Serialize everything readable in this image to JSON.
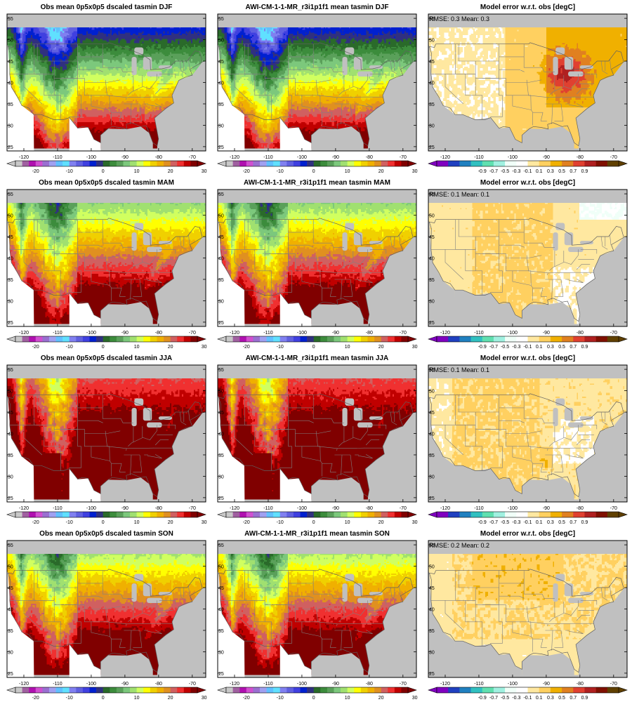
{
  "colors": {
    "absolute": [
      "#c8c8c8",
      "#a060a0",
      "#b010b0",
      "#d050d0",
      "#9a6fd0",
      "#a0a0f0",
      "#60c0ff",
      "#60e0ff",
      "#8080f0",
      "#6060e0",
      "#4040e0",
      "#0020d0",
      "#303080",
      "#2a6a2a",
      "#3c8c3c",
      "#5aa05a",
      "#7cc87c",
      "#a0e070",
      "#d0ff60",
      "#ffff00",
      "#f0d000",
      "#f0b000",
      "#e09020",
      "#d06060",
      "#f03030",
      "#c00000",
      "#800000"
    ],
    "difference": [
      "#8000c0",
      "#2040c0",
      "#2080c0",
      "#30c0c0",
      "#60e0b0",
      "#a0f0e0",
      "#f0fff8",
      "#ffffff",
      "#ffe8a0",
      "#ffd060",
      "#f0b000",
      "#e08020",
      "#e04030",
      "#b02020",
      "#801000",
      "#604000"
    ],
    "missing": "#c0c0c0",
    "state_lines": "#808080"
  },
  "axes": {
    "lat_ticks": [
      "25",
      "30",
      "35",
      "40",
      "45",
      "50",
      "55"
    ],
    "lon_ticks": [
      "-120",
      "-110",
      "-100",
      "-90",
      "-80",
      "-70"
    ]
  },
  "colorbars": {
    "absolute_labels": [
      "-20",
      "-10",
      "0",
      "10",
      "20",
      "30"
    ],
    "difference_labels": [
      "-0.9",
      "-0.7",
      "-0.5",
      "-0.3",
      "-0.1",
      "0.1",
      "0.3",
      "0.5",
      "0.7",
      "0.9"
    ]
  },
  "rows": [
    {
      "season": "DJF",
      "panels": [
        {
          "title": "Obs mean 0p5x0p5 dscaled tasmin DJF",
          "kind": "absolute",
          "stats": ""
        },
        {
          "title": "AWI-CM-1-1-MR_r3i1p1f1 mean tasmin DJF",
          "kind": "absolute",
          "stats": ""
        },
        {
          "title": "Model error w.r.t. obs [degC]",
          "kind": "difference",
          "stats": "RMSE: 0.3  Mean: 0.3"
        }
      ]
    },
    {
      "season": "MAM",
      "panels": [
        {
          "title": "Obs mean 0p5x0p5 dscaled tasmin MAM",
          "kind": "absolute",
          "stats": ""
        },
        {
          "title": "AWI-CM-1-1-MR_r3i1p1f1 mean tasmin MAM",
          "kind": "absolute",
          "stats": ""
        },
        {
          "title": "Model error w.r.t. obs [degC]",
          "kind": "difference",
          "stats": "RMSE: 0.1  Mean: 0.1"
        }
      ]
    },
    {
      "season": "JJA",
      "panels": [
        {
          "title": "Obs mean 0p5x0p5 dscaled tasmin JJA",
          "kind": "absolute",
          "stats": ""
        },
        {
          "title": "AWI-CM-1-1-MR_r3i1p1f1 mean tasmin JJA",
          "kind": "absolute",
          "stats": ""
        },
        {
          "title": "Model error w.r.t. obs [degC]",
          "kind": "difference",
          "stats": "RMSE: 0.1  Mean: 0.1"
        }
      ]
    },
    {
      "season": "SON",
      "panels": [
        {
          "title": "Obs mean 0p5x0p5 dscaled tasmin SON",
          "kind": "absolute",
          "stats": ""
        },
        {
          "title": "AWI-CM-1-1-MR_r3i1p1f1 mean tasmin SON",
          "kind": "absolute",
          "stats": ""
        },
        {
          "title": "Model error w.r.t. obs [degC]",
          "kind": "difference",
          "stats": "RMSE: 0.2  Mean: 0.2"
        }
      ]
    }
  ]
}
